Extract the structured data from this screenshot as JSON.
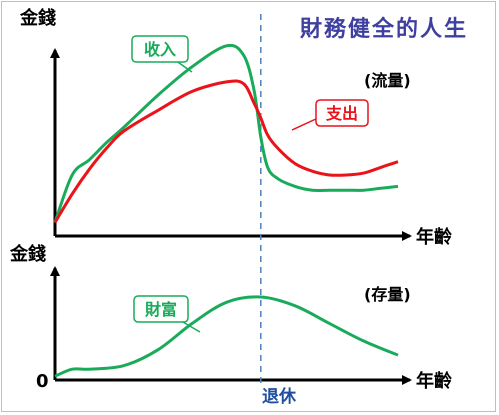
{
  "chart_data": [
    {
      "type": "line",
      "title": "財務健全的人生",
      "annotation": "(流量)",
      "ylabel": "金錢",
      "xlabel": "年齡",
      "marker": {
        "label": "退休",
        "x": 0.6
      },
      "x": [
        0,
        0.05,
        0.1,
        0.15,
        0.2,
        0.3,
        0.4,
        0.5,
        0.55,
        0.58,
        0.6,
        0.62,
        0.65,
        0.7,
        0.75,
        0.8,
        0.85,
        0.9,
        0.95,
        1.0
      ],
      "series": [
        {
          "name": "收入",
          "color": "#1aab5a",
          "values": [
            0.05,
            0.3,
            0.38,
            0.47,
            0.55,
            0.72,
            0.87,
            0.98,
            0.93,
            0.75,
            0.5,
            0.34,
            0.28,
            0.24,
            0.22,
            0.22,
            0.22,
            0.22,
            0.23,
            0.24
          ]
        },
        {
          "name": "支出",
          "color": "#e8141a",
          "values": [
            0.05,
            0.2,
            0.33,
            0.44,
            0.53,
            0.64,
            0.74,
            0.79,
            0.78,
            0.68,
            0.6,
            0.51,
            0.44,
            0.36,
            0.32,
            0.3,
            0.3,
            0.31,
            0.34,
            0.37
          ]
        }
      ],
      "ylim": [
        0,
        1
      ]
    },
    {
      "type": "line",
      "annotation": "(存量)",
      "ylabel": "金錢",
      "xlabel": "年齡",
      "origin_label": "0",
      "marker": {
        "label": "退休",
        "x": 0.6
      },
      "x": [
        0,
        0.05,
        0.1,
        0.2,
        0.3,
        0.4,
        0.5,
        0.6,
        0.7,
        0.8,
        0.9,
        1.0
      ],
      "series": [
        {
          "name": "財富",
          "color": "#1aab5a",
          "values": [
            0.02,
            0.1,
            0.1,
            0.14,
            0.32,
            0.62,
            0.86,
            0.92,
            0.82,
            0.62,
            0.42,
            0.26
          ]
        }
      ],
      "ylim": [
        0,
        1
      ]
    }
  ]
}
